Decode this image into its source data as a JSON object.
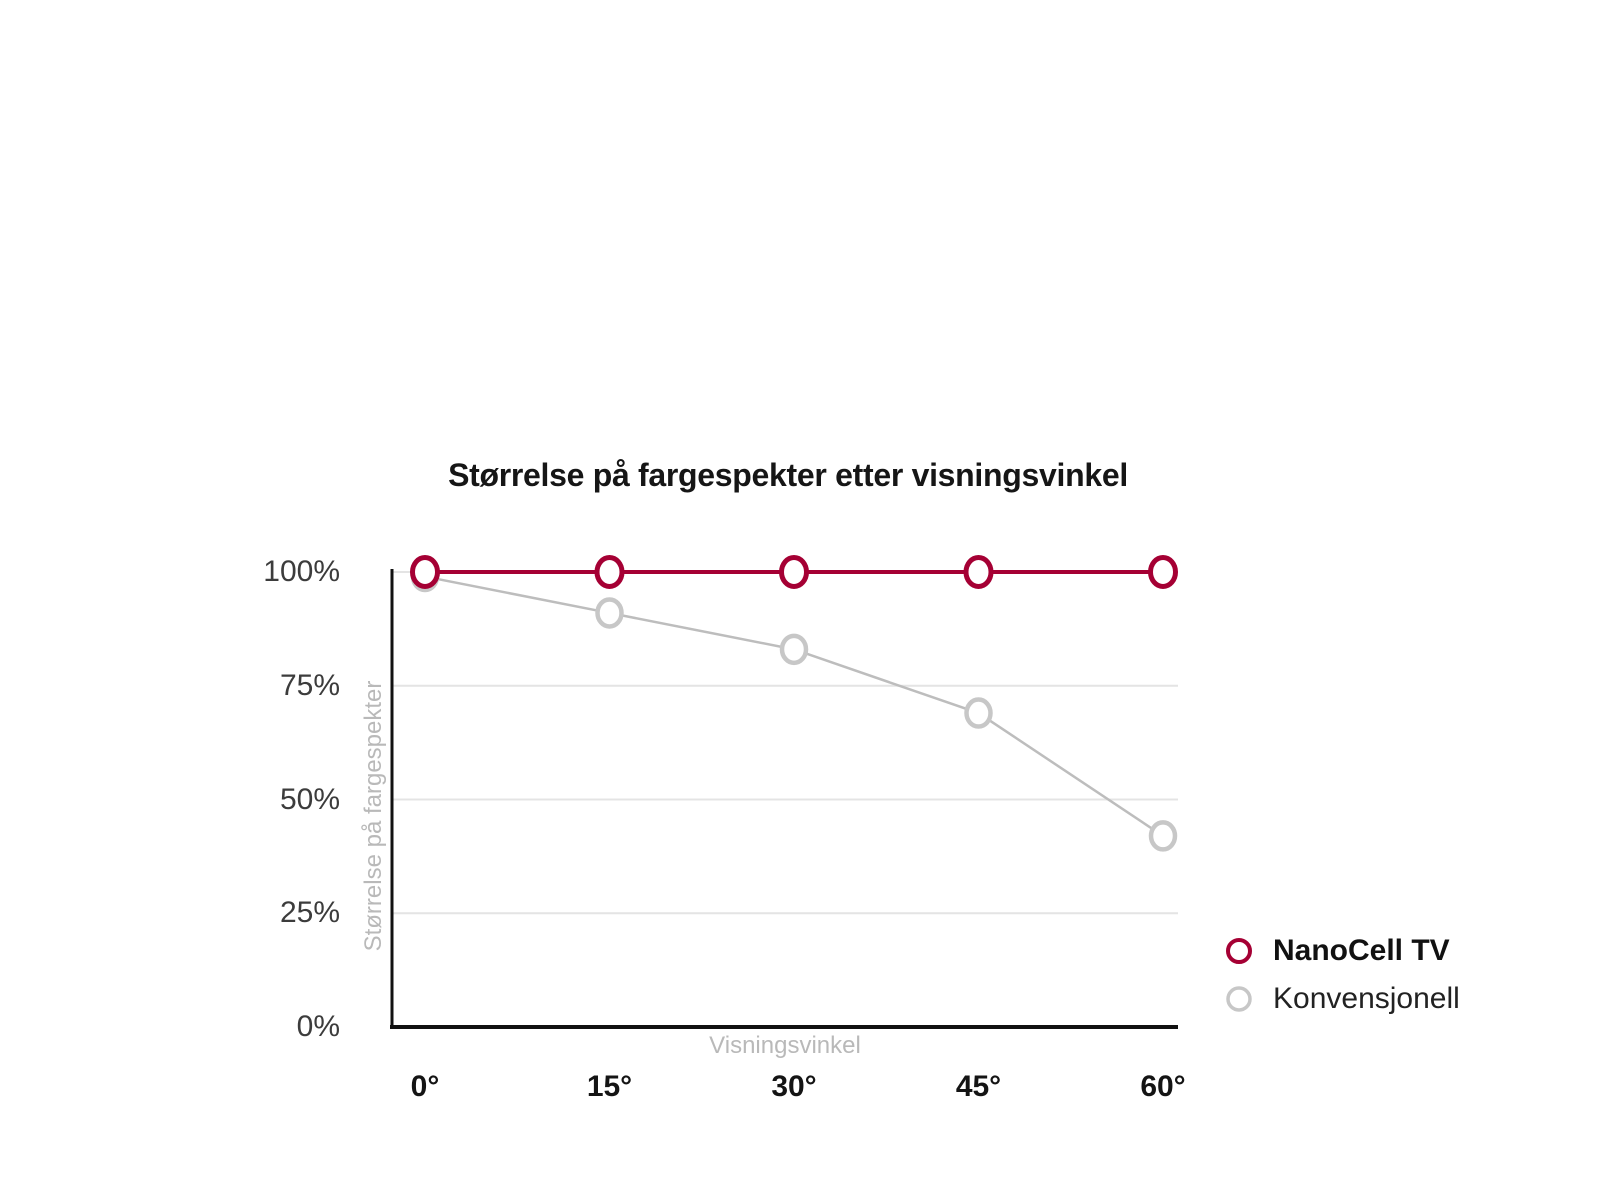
{
  "chart_data": {
    "type": "line",
    "title": "Størrelse på fargespekter etter visningsvinkel",
    "xlabel": "Visningsvinkel",
    "ylabel": "Størrelse på fargespekter",
    "categories": [
      "0°",
      "15°",
      "30°",
      "45°",
      "60°"
    ],
    "series": [
      {
        "name": "NanoCell TV",
        "values": [
          100,
          100,
          100,
          100,
          100
        ],
        "color": "#A50034",
        "bold": true
      },
      {
        "name": "Konvensjonell",
        "values": [
          99,
          91,
          83,
          69,
          42
        ],
        "color": "#C7C7C7",
        "bold": false
      }
    ],
    "ylim": [
      0,
      100
    ],
    "yticks": [
      {
        "value": 100,
        "label": "100%"
      },
      {
        "value": 75,
        "label": "75%"
      },
      {
        "value": 50,
        "label": "50%"
      },
      {
        "value": 25,
        "label": "25%"
      },
      {
        "value": 0,
        "label": "0%"
      }
    ],
    "grid": true,
    "legend_position": "right"
  },
  "colors": {
    "background": "#ffffff",
    "axis": "#111111",
    "gridline": "#e4e4e4",
    "nanocell_line": "#A50034",
    "conventional_line": "#BDBDBD",
    "conventional_marker": "#C7C7C7",
    "marker_fill": "#ffffff",
    "title_text": "#161616",
    "tick_text": "#3c3c3c",
    "axis_title_text": "#b9b9b9"
  }
}
